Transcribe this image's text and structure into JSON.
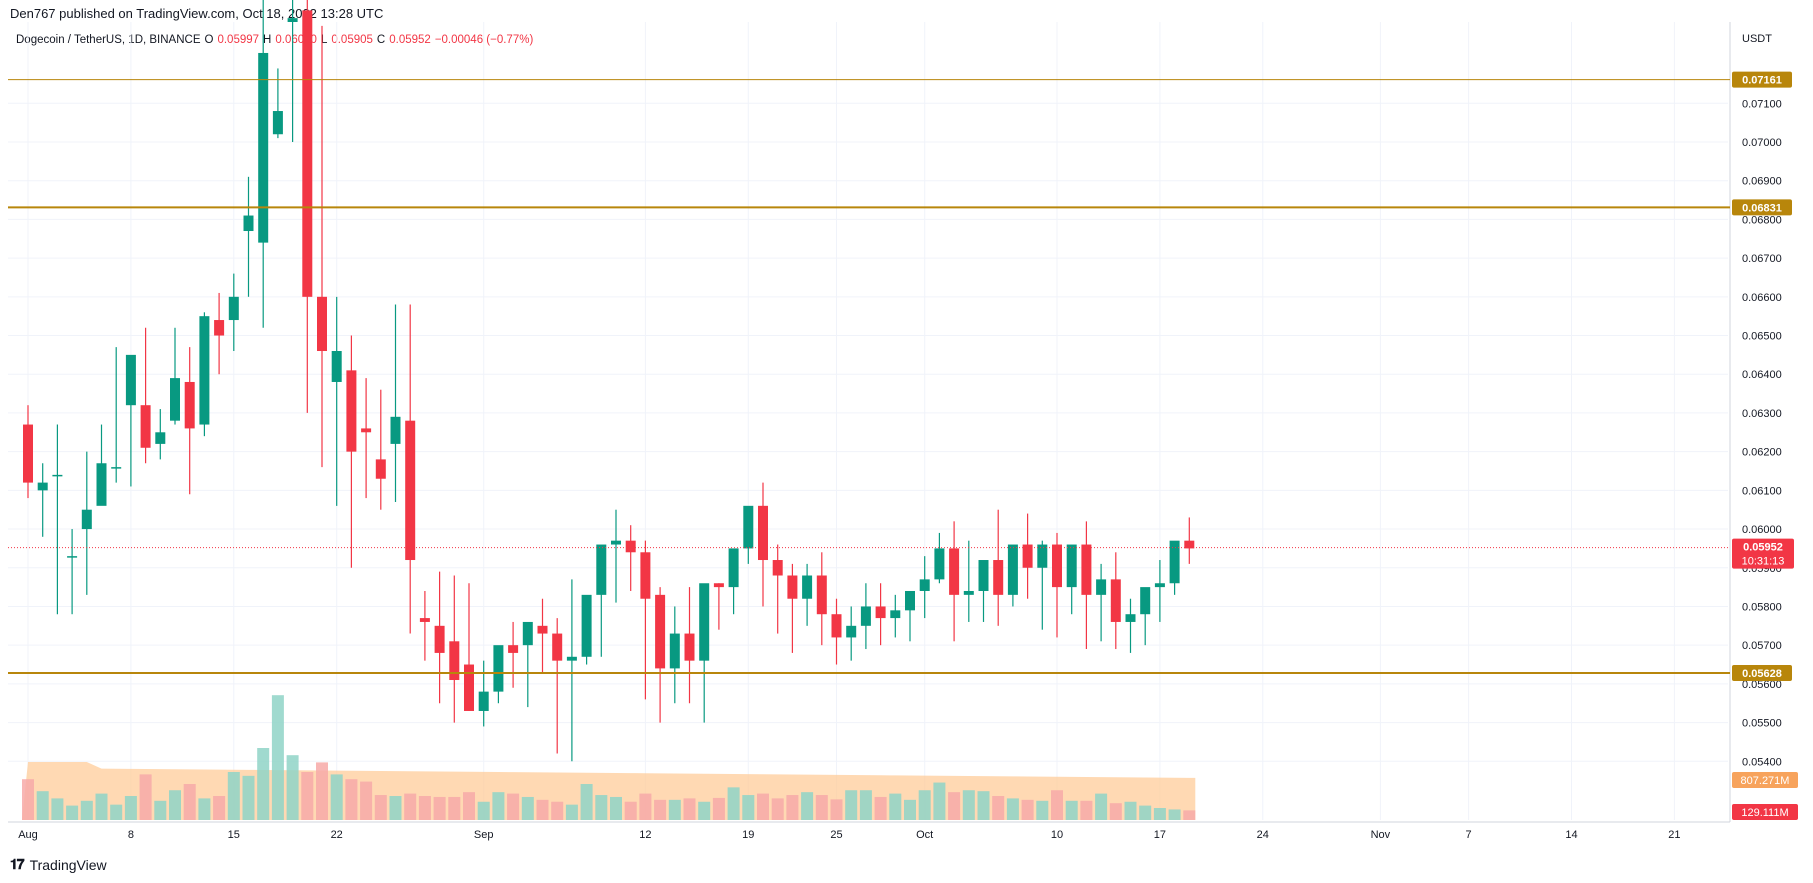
{
  "header": {
    "published": "Den767 published on TradingView.com, Oct 18, 2022 13:28 UTC"
  },
  "legend": {
    "symbol": "Dogecoin / TetherUS, 1D, BINANCE",
    "open_label": "O",
    "open": "0.05997",
    "high_label": "H",
    "high": "0.06030",
    "low_label": "L",
    "low": "0.05905",
    "close_label": "C",
    "close": "0.05952",
    "change": "−0.00046 (−0.77%)"
  },
  "currency": "USDT",
  "footer": {
    "brand": "TradingView"
  },
  "colors": {
    "up": "#089981",
    "down": "#f23645",
    "level": "#b8860b",
    "vol_up": "#8fd3c7",
    "vol_down": "#f7a9a8",
    "vol_ma": "#ffcc99"
  },
  "chart_data": {
    "type": "candlestick",
    "ylim": [
      0.053,
      0.0731
    ],
    "y_ticks": [
      "0.05400",
      "0.05500",
      "0.05600",
      "0.05700",
      "0.05800",
      "0.05900",
      "0.06000",
      "0.06100",
      "0.06200",
      "0.06300",
      "0.06400",
      "0.06500",
      "0.06600",
      "0.06700",
      "0.06800",
      "0.06900",
      "0.07000",
      "0.07100"
    ],
    "x_labels": [
      {
        "label": "Aug",
        "day": 0
      },
      {
        "label": "8",
        "day": 7
      },
      {
        "label": "15",
        "day": 14
      },
      {
        "label": "22",
        "day": 21
      },
      {
        "label": "Sep",
        "day": 31
      },
      {
        "label": "12",
        "day": 42
      },
      {
        "label": "19",
        "day": 49
      },
      {
        "label": "25",
        "day": 55
      },
      {
        "label": "Oct",
        "day": 61
      },
      {
        "label": "10",
        "day": 70
      },
      {
        "label": "17",
        "day": 77
      },
      {
        "label": "24",
        "day": 84
      },
      {
        "label": "Nov",
        "day": 92
      },
      {
        "label": "7",
        "day": 98
      },
      {
        "label": "14",
        "day": 105
      },
      {
        "label": "21",
        "day": 112
      }
    ],
    "levels": [
      {
        "value": 0.07161,
        "label": "0.07161",
        "weight": "thin"
      },
      {
        "value": 0.06831,
        "label": "0.06831",
        "weight": "thick"
      },
      {
        "value": 0.05628,
        "label": "0.05628",
        "weight": "thick"
      }
    ],
    "last_price": {
      "value": 0.05952,
      "label": "0.05952",
      "countdown": "10:31:13"
    },
    "volume_labels": {
      "ma": "807.271M",
      "last": "129.111M"
    },
    "candles": [
      [
        0.0627,
        0.0632,
        0.0612,
        0.0608
      ],
      [
        0.061,
        0.0617,
        0.0612,
        0.0598
      ],
      [
        0.0614,
        0.0627,
        0.0614,
        0.0578
      ],
      [
        0.0593,
        0.06,
        0.0593,
        0.0578
      ],
      [
        0.06,
        0.062,
        0.0605,
        0.0583
      ],
      [
        0.0606,
        0.0627,
        0.0617,
        0.0612
      ],
      [
        0.0616,
        0.0647,
        0.0616,
        0.0612
      ],
      [
        0.0632,
        0.0643,
        0.0645,
        0.0611
      ],
      [
        0.0632,
        0.0652,
        0.0621,
        0.0617
      ],
      [
        0.0622,
        0.0631,
        0.0625,
        0.0618
      ],
      [
        0.0628,
        0.0652,
        0.0639,
        0.0627
      ],
      [
        0.0638,
        0.0647,
        0.0626,
        0.0609
      ],
      [
        0.0627,
        0.0656,
        0.0655,
        0.0624
      ],
      [
        0.0654,
        0.0661,
        0.065,
        0.064
      ],
      [
        0.0654,
        0.0666,
        0.066,
        0.0646
      ],
      [
        0.0677,
        0.0691,
        0.0681,
        0.066
      ],
      [
        0.0674,
        0.0752,
        0.0723,
        0.0652
      ],
      [
        0.0702,
        0.0719,
        0.0708,
        0.0701
      ],
      [
        0.0731,
        0.076,
        0.0732,
        0.07
      ],
      [
        0.0734,
        0.0749,
        0.066,
        0.063
      ],
      [
        0.066,
        0.073,
        0.0646,
        0.0616
      ],
      [
        0.0638,
        0.066,
        0.0646,
        0.0606
      ],
      [
        0.0641,
        0.065,
        0.062,
        0.059
      ],
      [
        0.0626,
        0.0639,
        0.0625,
        0.0608
      ],
      [
        0.0618,
        0.0636,
        0.0613,
        0.0605
      ],
      [
        0.0622,
        0.0658,
        0.0629,
        0.0607
      ],
      [
        0.0628,
        0.0658,
        0.0592,
        0.0573
      ],
      [
        0.0577,
        0.0584,
        0.0576,
        0.0566
      ],
      [
        0.0575,
        0.0589,
        0.0568,
        0.0555
      ],
      [
        0.0571,
        0.0588,
        0.0561,
        0.055
      ],
      [
        0.0565,
        0.0586,
        0.0553,
        0.0553
      ],
      [
        0.0553,
        0.0566,
        0.0558,
        0.0549
      ],
      [
        0.0558,
        0.0567,
        0.057,
        0.0555
      ],
      [
        0.057,
        0.0576,
        0.0568,
        0.0559
      ],
      [
        0.057,
        0.0574,
        0.0576,
        0.0554
      ],
      [
        0.0575,
        0.0582,
        0.0573,
        0.0563
      ],
      [
        0.0573,
        0.0577,
        0.0566,
        0.0542
      ],
      [
        0.0566,
        0.0587,
        0.0567,
        0.054
      ],
      [
        0.0567,
        0.0574,
        0.0583,
        0.0565
      ],
      [
        0.0583,
        0.0584,
        0.0596,
        0.0567
      ],
      [
        0.0596,
        0.0605,
        0.0597,
        0.0581
      ],
      [
        0.0597,
        0.0601,
        0.0594,
        0.0584
      ],
      [
        0.0594,
        0.0597,
        0.0582,
        0.0556
      ],
      [
        0.0583,
        0.0585,
        0.0564,
        0.055
      ],
      [
        0.0564,
        0.058,
        0.0573,
        0.0555
      ],
      [
        0.0573,
        0.0585,
        0.0566,
        0.0555
      ],
      [
        0.0566,
        0.0573,
        0.0586,
        0.055
      ],
      [
        0.0586,
        0.0586,
        0.0585,
        0.0574
      ],
      [
        0.0585,
        0.0586,
        0.0595,
        0.0578
      ],
      [
        0.0595,
        0.0596,
        0.0606,
        0.0591
      ],
      [
        0.0606,
        0.0612,
        0.0592,
        0.058
      ],
      [
        0.0592,
        0.0596,
        0.0588,
        0.0573
      ],
      [
        0.0588,
        0.0591,
        0.0582,
        0.0568
      ],
      [
        0.0582,
        0.0591,
        0.0588,
        0.0575
      ],
      [
        0.0588,
        0.0594,
        0.0578,
        0.057
      ],
      [
        0.0578,
        0.0582,
        0.0572,
        0.0565
      ],
      [
        0.0572,
        0.058,
        0.0575,
        0.0566
      ],
      [
        0.0575,
        0.0586,
        0.058,
        0.0569
      ],
      [
        0.058,
        0.0586,
        0.0577,
        0.057
      ],
      [
        0.0577,
        0.0583,
        0.0579,
        0.0572
      ],
      [
        0.0579,
        0.0582,
        0.0584,
        0.0571
      ],
      [
        0.0584,
        0.0593,
        0.0587,
        0.0577
      ],
      [
        0.0587,
        0.0599,
        0.0595,
        0.0586
      ],
      [
        0.0595,
        0.0602,
        0.0583,
        0.0571
      ],
      [
        0.0583,
        0.0597,
        0.0584,
        0.0576
      ],
      [
        0.0584,
        0.0588,
        0.0592,
        0.0576
      ],
      [
        0.0592,
        0.0605,
        0.0583,
        0.0575
      ],
      [
        0.0583,
        0.0594,
        0.0596,
        0.058
      ],
      [
        0.0596,
        0.0604,
        0.059,
        0.0582
      ],
      [
        0.059,
        0.0597,
        0.0596,
        0.0574
      ],
      [
        0.0596,
        0.0599,
        0.0585,
        0.0572
      ],
      [
        0.0585,
        0.059,
        0.0596,
        0.0578
      ],
      [
        0.0596,
        0.0602,
        0.0583,
        0.0569
      ],
      [
        0.0583,
        0.0591,
        0.0587,
        0.0571
      ],
      [
        0.0587,
        0.0594,
        0.0576,
        0.0569
      ],
      [
        0.0576,
        0.0582,
        0.0578,
        0.0568
      ],
      [
        0.0578,
        0.058,
        0.0585,
        0.057
      ],
      [
        0.0585,
        0.0592,
        0.0586,
        0.0576
      ],
      [
        0.0586,
        0.0591,
        0.0597,
        0.0583
      ],
      [
        0.0597,
        0.0603,
        0.0595,
        0.0591
      ]
    ]
  }
}
